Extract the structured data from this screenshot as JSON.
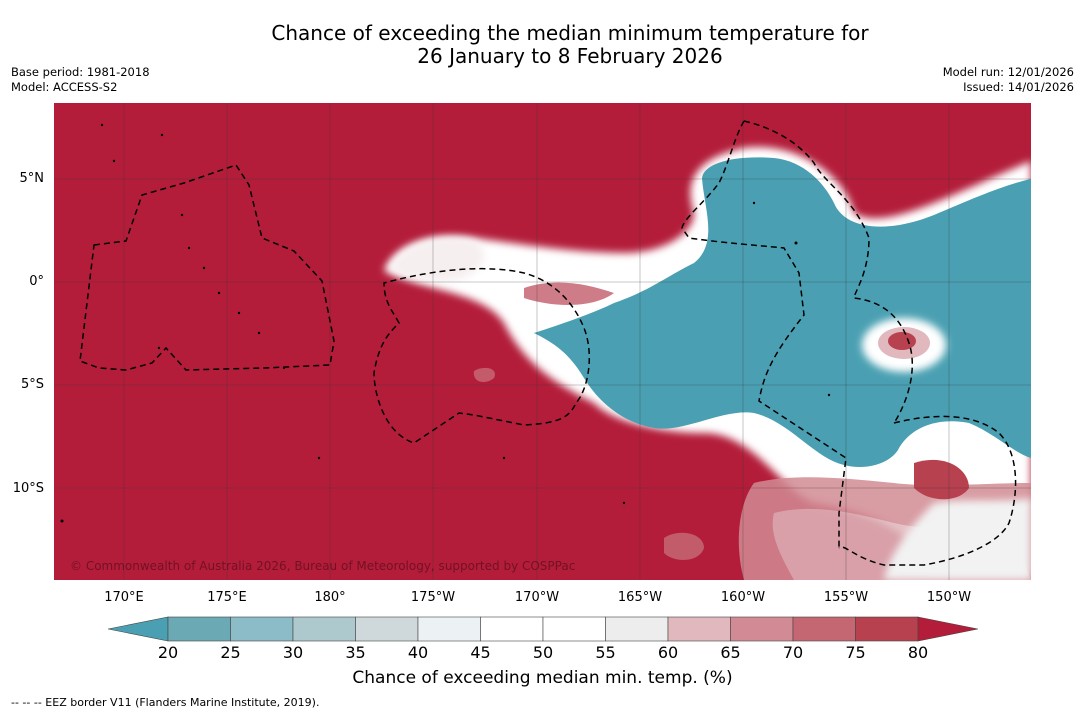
{
  "title_line1": "Chance of exceeding the median minimum temperature for",
  "title_line2": "26 January to 8 February 2026",
  "base_period": "Base period: 1981-2018",
  "model": "Model: ACCESS-S2",
  "model_run": "Model run: 12/01/2026",
  "issued": "Issued: 14/01/2026",
  "lat_labels": [
    "5°N",
    "0°",
    "5°S",
    "10°S"
  ],
  "lon_labels": [
    "170°E",
    "175°E",
    "180°",
    "175°W",
    "170°W",
    "165°W",
    "160°W",
    "155°W",
    "150°W"
  ],
  "credit": "© Commonwealth of Australia 2026, Bureau of Meteorology, supported by COSPPac",
  "colorbar": {
    "ticks": [
      "20",
      "25",
      "30",
      "35",
      "40",
      "45",
      "50",
      "55",
      "60",
      "65",
      "70",
      "75",
      "80"
    ],
    "colors": [
      "#6ba9b5",
      "#8bbcc7",
      "#adc9cd",
      "#cfd9db",
      "#ecf2f4",
      "#ffffff",
      "#ffffff",
      "#ededed",
      "#e0b8bd",
      "#d28b94",
      "#c56673",
      "#b8414f"
    ],
    "low_color": "#4aa0b2",
    "high_color": "#b31d3a",
    "label": "Chance of exceeding median min. temp. (%)"
  },
  "eez_note": "--  --  -- EEZ border V11 (Flanders Marine Institute, 2019).",
  "colors": {
    "warm": "#b31d3a",
    "cool": "#4aa0b2",
    "neutral": "#ffffff"
  }
}
